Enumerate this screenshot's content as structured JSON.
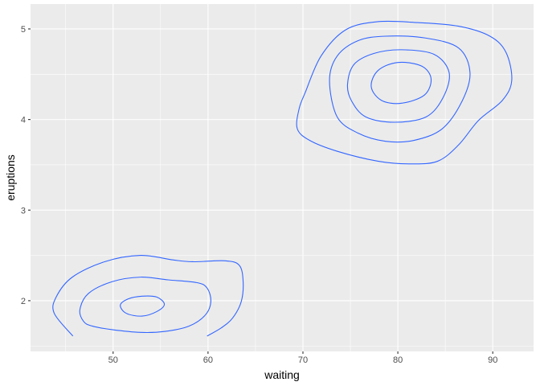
{
  "chart_data": {
    "type": "contour",
    "xlabel": "waiting",
    "ylabel": "eruptions",
    "xlim": [
      41.3,
      94.3
    ],
    "ylim": [
      1.44,
      5.275
    ],
    "x_ticks": [
      "50",
      "60",
      "70",
      "80",
      "90"
    ],
    "x_tick_values": [
      50,
      60,
      70,
      80,
      90
    ],
    "y_ticks": [
      "2",
      "3",
      "4",
      "5"
    ],
    "y_tick_values": [
      2,
      3,
      4,
      5
    ],
    "x_minor": [
      45,
      55,
      65,
      75,
      85
    ],
    "y_minor": [
      1.5,
      2.5,
      3.5,
      4.5
    ],
    "grid": true,
    "colors": {
      "panel": "#EBEBEB",
      "grid": "#FFFFFF",
      "line": "#3366FF"
    },
    "contours": [
      {
        "closed": false,
        "points": [
          [
            45.76,
            1.61
          ],
          [
            43.8,
            1.86
          ],
          [
            44.0,
            2.04
          ],
          [
            45.7,
            2.26
          ],
          [
            49.1,
            2.43
          ],
          [
            52.9,
            2.5
          ],
          [
            56.3,
            2.45
          ],
          [
            58.4,
            2.43
          ],
          [
            61.8,
            2.44
          ],
          [
            63.3,
            2.39
          ],
          [
            63.7,
            2.21
          ],
          [
            63.5,
            1.99
          ],
          [
            62.6,
            1.81
          ],
          [
            61.4,
            1.7
          ],
          [
            59.9,
            1.61
          ]
        ]
      },
      {
        "closed": true,
        "points": [
          [
            46.9,
            1.77
          ],
          [
            46.5,
            1.9
          ],
          [
            47.4,
            2.08
          ],
          [
            49.9,
            2.21
          ],
          [
            52.9,
            2.26
          ],
          [
            55.8,
            2.23
          ],
          [
            58.8,
            2.2
          ],
          [
            59.9,
            2.14
          ],
          [
            60.3,
            1.99
          ],
          [
            59.7,
            1.84
          ],
          [
            58.0,
            1.72
          ],
          [
            55.4,
            1.66
          ],
          [
            52.9,
            1.65
          ],
          [
            49.9,
            1.68
          ],
          [
            47.8,
            1.72
          ]
        ]
      },
      {
        "closed": true,
        "points": [
          [
            50.76,
            1.95
          ],
          [
            51.6,
            2.02
          ],
          [
            53.05,
            2.05
          ],
          [
            54.6,
            2.04
          ],
          [
            55.4,
            1.96
          ],
          [
            54.6,
            1.88
          ],
          [
            53.05,
            1.83
          ],
          [
            51.4,
            1.86
          ]
        ]
      },
      {
        "closed": true,
        "points": [
          [
            70.25,
            4.3
          ],
          [
            71.9,
            4.7
          ],
          [
            74.5,
            4.99
          ],
          [
            77.9,
            5.08
          ],
          [
            82.1,
            5.07
          ],
          [
            86.4,
            5.03
          ],
          [
            89.7,
            4.92
          ],
          [
            91.4,
            4.74
          ],
          [
            92.0,
            4.43
          ],
          [
            91.0,
            4.21
          ],
          [
            88.5,
            3.99
          ],
          [
            86.4,
            3.72
          ],
          [
            84.2,
            3.54
          ],
          [
            81.3,
            3.51
          ],
          [
            77.9,
            3.54
          ],
          [
            73.6,
            3.65
          ],
          [
            70.7,
            3.77
          ],
          [
            69.4,
            3.9
          ],
          [
            69.6,
            4.12
          ]
        ]
      },
      {
        "closed": true,
        "points": [
          [
            72.8,
            4.43
          ],
          [
            73.6,
            4.7
          ],
          [
            75.8,
            4.87
          ],
          [
            78.7,
            4.92
          ],
          [
            82.9,
            4.9
          ],
          [
            86.4,
            4.79
          ],
          [
            87.6,
            4.52
          ],
          [
            86.8,
            4.21
          ],
          [
            84.7,
            3.9
          ],
          [
            81.7,
            3.77
          ],
          [
            78.7,
            3.76
          ],
          [
            75.8,
            3.85
          ],
          [
            73.6,
            4.03
          ]
        ]
      },
      {
        "closed": true,
        "points": [
          [
            74.7,
            4.39
          ],
          [
            75.4,
            4.61
          ],
          [
            77.5,
            4.73
          ],
          [
            80.4,
            4.77
          ],
          [
            83.8,
            4.72
          ],
          [
            85.4,
            4.52
          ],
          [
            84.8,
            4.25
          ],
          [
            83.0,
            4.03
          ],
          [
            79.6,
            3.97
          ],
          [
            76.6,
            4.03
          ],
          [
            75.1,
            4.21
          ]
        ]
      },
      {
        "closed": true,
        "points": [
          [
            77.2,
            4.36
          ],
          [
            77.9,
            4.54
          ],
          [
            80.0,
            4.63
          ],
          [
            82.5,
            4.59
          ],
          [
            83.5,
            4.45
          ],
          [
            82.8,
            4.27
          ],
          [
            80.4,
            4.18
          ],
          [
            78.3,
            4.21
          ]
        ]
      }
    ]
  }
}
